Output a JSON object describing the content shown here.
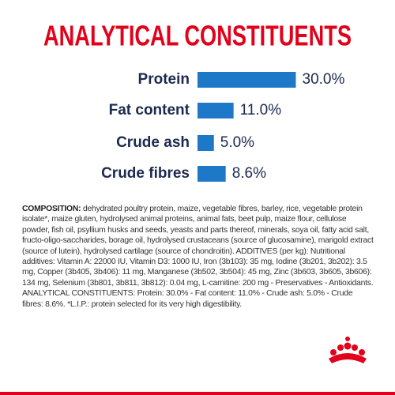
{
  "chart_data": {
    "type": "bar",
    "orientation": "horizontal",
    "title": "ANALYTICAL CONSTITUENTS",
    "categories": [
      "Protein",
      "Fat content",
      "Crude ash",
      "Crude fibres"
    ],
    "values": [
      30.0,
      11.0,
      5.0,
      8.6
    ],
    "value_labels": [
      "30.0%",
      "11.0%",
      "5.0%",
      "8.6%"
    ],
    "color": "#1e78c8"
  },
  "composition": {
    "label": "COMPOSITION:",
    "text": "dehydrated poultry protein, maize, vegetable fibres, barley, rice, vegetable protein isolate*, maize gluten, hydrolysed animal proteins, animal fats, beet pulp, maize flour, cellulose powder, fish oil, psyllium husks and seeds, yeasts and parts thereof, minerals, soya oil, fatty acid salt, fructo-oligo-saccharides, borage oil, hydrolysed crustaceans (source of glucosamine), marigold extract (source of lutein), hydrolysed cartilage (source of chondroitin). ADDITIVES (per kg): Nutritional additives: Vitamin A: 22000 IU, Vitamin D3: 1000 IU, Iron (3b103): 35 mg, Iodine (3b201, 3b202): 3.5 mg, Copper (3b405, 3b406): 11 mg, Manganese (3b502, 3b504): 45 mg, Zinc (3b603, 3b605, 3b606): 134 mg, Selenium (3b801, 3b811, 3b812): 0.04 mg, L-carnitine: 200 mg - Preservatives - Antioxidants. ANALYTICAL CONSTITUENTS: Protein: 30.0% - Fat content: 11.0% - Crude ash: 5.0% - Crude fibres: 8.6%. *L.I.P.: protein selected for its very high digestibility."
  }
}
